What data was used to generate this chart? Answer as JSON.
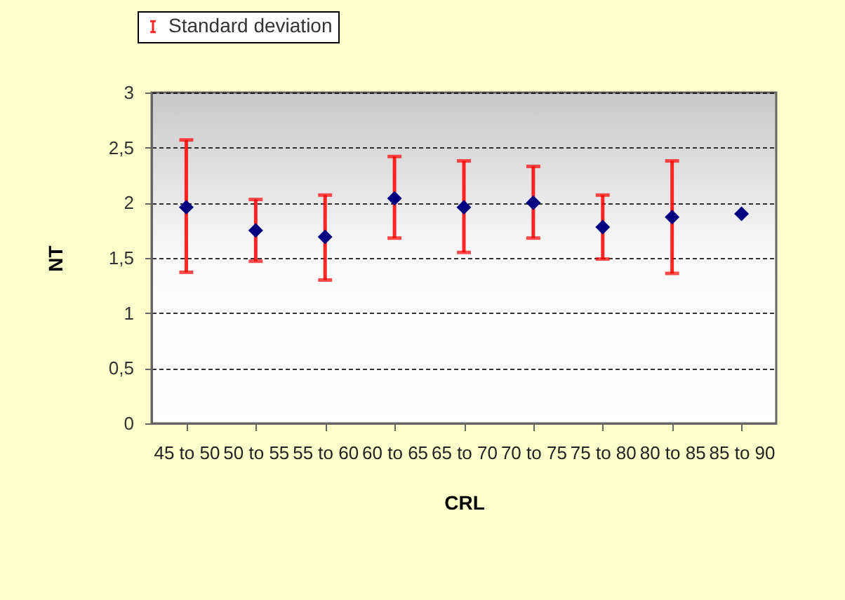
{
  "chart_data": {
    "type": "scatter",
    "xlabel": "CRL",
    "ylabel": "NT",
    "categories": [
      "45 to 50",
      "50 to 55",
      "55 to 60",
      "60 to 65",
      "65 to 70",
      "70 to 75",
      "75 to 80",
      "80 to 85",
      "85 to 90"
    ],
    "series": [
      {
        "name": "Standard deviation",
        "color": "#000080",
        "values": [
          1.96,
          1.75,
          1.69,
          2.04,
          1.96,
          2.0,
          1.78,
          1.87,
          1.9
        ],
        "errors": [
          [
            1.37,
            2.57
          ],
          [
            1.47,
            2.03
          ],
          [
            1.3,
            2.07
          ],
          [
            1.68,
            2.42
          ],
          [
            1.55,
            2.38
          ],
          [
            1.68,
            2.33
          ],
          [
            1.49,
            2.07
          ],
          [
            1.36,
            2.38
          ],
          null
        ]
      }
    ],
    "ylim": [
      0,
      3
    ],
    "yticks": [
      {
        "value": 0,
        "label": "0"
      },
      {
        "value": 0.5,
        "label": "0,5"
      },
      {
        "value": 1,
        "label": "1"
      },
      {
        "value": 1.5,
        "label": "1,5"
      },
      {
        "value": 2,
        "label": "2"
      },
      {
        "value": 2.5,
        "label": "2,5"
      },
      {
        "value": 3,
        "label": "3"
      }
    ],
    "grid": "y",
    "legend": "top left",
    "marker": "diamond"
  }
}
